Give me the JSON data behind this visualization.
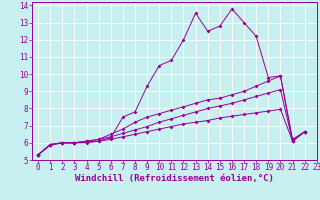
{
  "xlabel": "Windchill (Refroidissement éolien,°C)",
  "xlim": [
    -0.5,
    23
  ],
  "ylim": [
    5,
    14.2
  ],
  "xticks": [
    0,
    1,
    2,
    3,
    4,
    5,
    6,
    7,
    8,
    9,
    10,
    11,
    12,
    13,
    14,
    15,
    16,
    17,
    18,
    19,
    20,
    21,
    22,
    23
  ],
  "yticks": [
    5,
    6,
    7,
    8,
    9,
    10,
    11,
    12,
    13,
    14
  ],
  "bg_color": "#c8f0f0",
  "line_color": "#990099",
  "grid_color": "#aadddd",
  "series": [
    [
      5.3,
      5.9,
      6.0,
      6.0,
      6.0,
      6.1,
      6.3,
      7.5,
      7.8,
      9.3,
      10.5,
      10.8,
      12.0,
      13.55,
      12.5,
      12.8,
      13.8,
      13.0,
      12.2,
      9.8,
      9.9,
      6.2,
      6.65,
      null
    ],
    [
      5.3,
      5.9,
      6.0,
      6.0,
      6.1,
      6.2,
      6.5,
      6.8,
      7.2,
      7.5,
      7.7,
      7.9,
      8.1,
      8.3,
      8.5,
      8.6,
      8.8,
      9.0,
      9.3,
      9.6,
      9.9,
      6.1,
      6.65,
      null
    ],
    [
      5.3,
      5.9,
      6.0,
      6.0,
      6.1,
      6.2,
      6.35,
      6.55,
      6.75,
      6.95,
      7.2,
      7.4,
      7.6,
      7.8,
      8.0,
      8.15,
      8.3,
      8.5,
      8.7,
      8.9,
      9.1,
      6.1,
      6.65,
      null
    ],
    [
      5.3,
      5.85,
      6.0,
      6.0,
      6.05,
      6.1,
      6.2,
      6.35,
      6.5,
      6.65,
      6.8,
      6.95,
      7.1,
      7.2,
      7.3,
      7.45,
      7.55,
      7.65,
      7.75,
      7.85,
      7.95,
      6.1,
      6.65,
      null
    ]
  ],
  "tick_fontsize": 5.5,
  "xlabel_fontsize": 6.5
}
